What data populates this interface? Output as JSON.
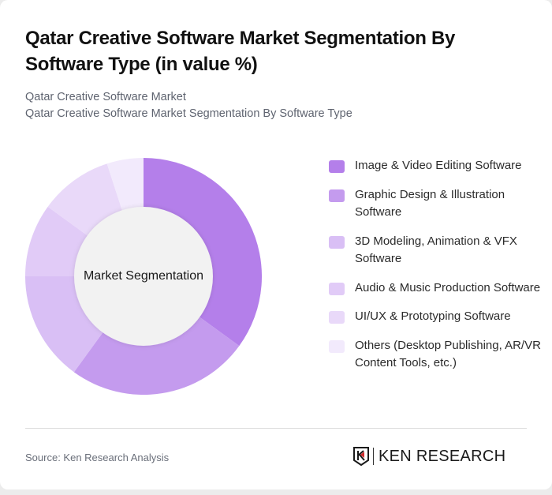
{
  "header": {
    "title": "Qatar Creative Software Market Segmentation By Software Type (in value %)",
    "subtitle_line1": "Qatar Creative Software Market",
    "subtitle_line2": "Qatar Creative Software Market Segmentation By Software Type"
  },
  "chart": {
    "center_label": "Market Segmentation"
  },
  "legend": {
    "items": [
      {
        "label": "Image & Video Editing Software",
        "color": "#b47fea"
      },
      {
        "label": "Graphic Design & Illustration Software",
        "color": "#c49bee"
      },
      {
        "label": "3D Modeling, Animation & VFX Software",
        "color": "#d9bff5"
      },
      {
        "label": "Audio & Music Production Software",
        "color": "#e1cbf7"
      },
      {
        "label": "UI/UX & Prototyping Software",
        "color": "#e9d9f9"
      },
      {
        "label": "Others (Desktop Publishing, AR/VR Content Tools, etc.)",
        "color": "#f2eafc"
      }
    ]
  },
  "footer": {
    "source": "Source: Ken Research Analysis",
    "logo_text": "KEN RESEARCH"
  },
  "chart_data": {
    "type": "pie",
    "title": "Qatar Creative Software Market Segmentation By Software Type (in value %)",
    "subtitle": "Qatar Creative Software Market",
    "center_label": "Market Segmentation",
    "categories": [
      "Image & Video Editing Software",
      "Graphic Design & Illustration Software",
      "3D Modeling, Animation & VFX Software",
      "Audio & Music Production Software",
      "UI/UX & Prototyping Software",
      "Others (Desktop Publishing, AR/VR Content Tools, etc.)"
    ],
    "values": [
      35,
      25,
      15,
      10,
      10,
      5
    ],
    "colors": [
      "#b47fea",
      "#c49bee",
      "#d9bff5",
      "#e1cbf7",
      "#e9d9f9",
      "#f2eafc"
    ],
    "unit": "%",
    "donut": true,
    "legend_position": "right"
  }
}
